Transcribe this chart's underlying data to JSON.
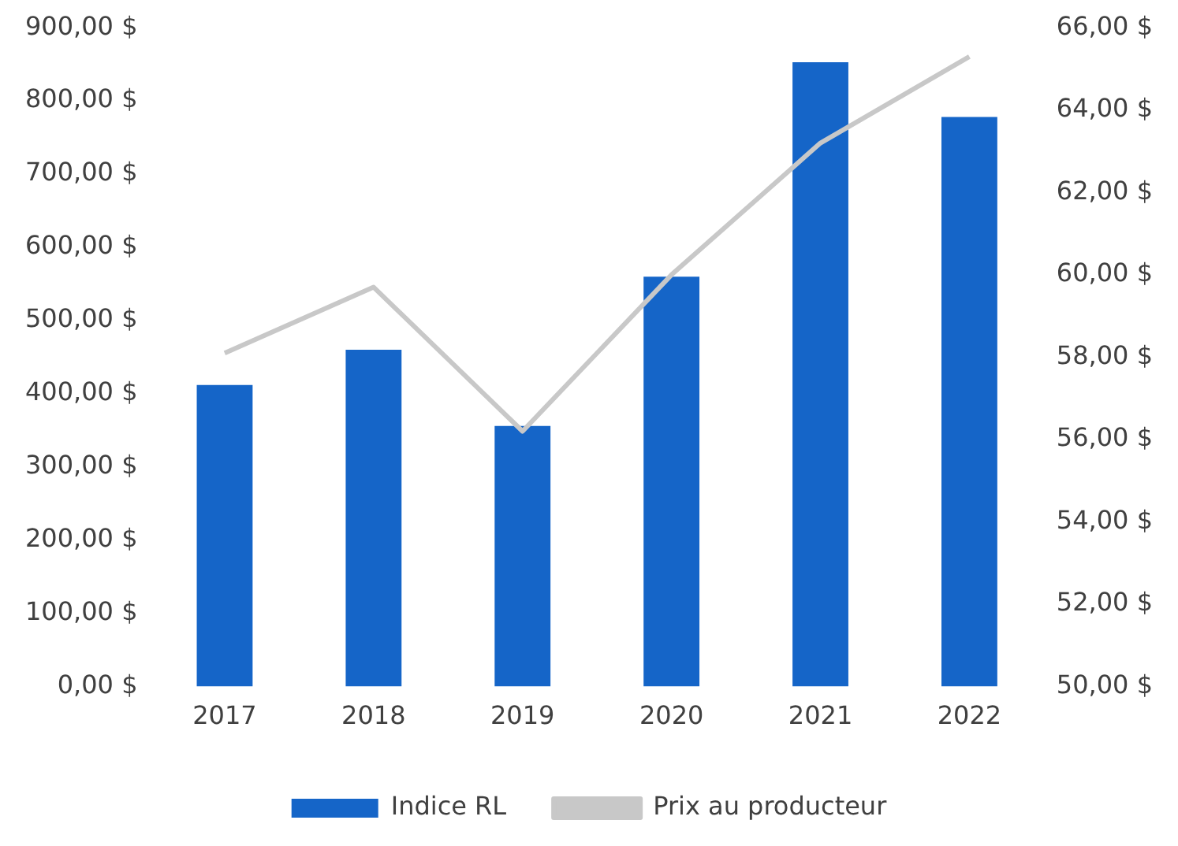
{
  "chart_data": {
    "type": "bar",
    "categories": [
      "2017",
      "2018",
      "2019",
      "2020",
      "2021",
      "2022"
    ],
    "series": [
      {
        "name": "Indice RL",
        "color": "#1565c8",
        "values": [
          412,
          460,
          356,
          560,
          853,
          778
        ]
      },
      {
        "name": "Prix au producteur",
        "type": "line",
        "axis": "y2",
        "color": "#c8c8c8",
        "values": [
          58.1,
          59.7,
          56.2,
          60.0,
          63.2,
          65.3
        ]
      }
    ],
    "ylim": [
      0,
      900
    ],
    "yticks": [
      {
        "value": 0,
        "label": "0,00 $"
      },
      {
        "value": 100,
        "label": "100,00 $"
      },
      {
        "value": 200,
        "label": "200,00 $"
      },
      {
        "value": 300,
        "label": "300,00 $"
      },
      {
        "value": 400,
        "label": "400,00 $"
      },
      {
        "value": 500,
        "label": "500,00 $"
      },
      {
        "value": 600,
        "label": "600,00 $"
      },
      {
        "value": 700,
        "label": "700,00 $"
      },
      {
        "value": 800,
        "label": "800,00 $"
      },
      {
        "value": 900,
        "label": "900,00 $"
      }
    ],
    "y2lim": [
      50,
      66
    ],
    "y2ticks": [
      {
        "value": 50,
        "label": "50,00 $"
      },
      {
        "value": 52,
        "label": "52,00 $"
      },
      {
        "value": 54,
        "label": "54,00 $"
      },
      {
        "value": 56,
        "label": "56,00 $"
      },
      {
        "value": 58,
        "label": "58,00 $"
      },
      {
        "value": 60,
        "label": "60,00 $"
      },
      {
        "value": 62,
        "label": "62,00 $"
      },
      {
        "value": 64,
        "label": "64,00 $"
      },
      {
        "value": 66,
        "label": "66,00 $"
      }
    ],
    "grid": false,
    "legend": "bottom",
    "marker": "none"
  }
}
